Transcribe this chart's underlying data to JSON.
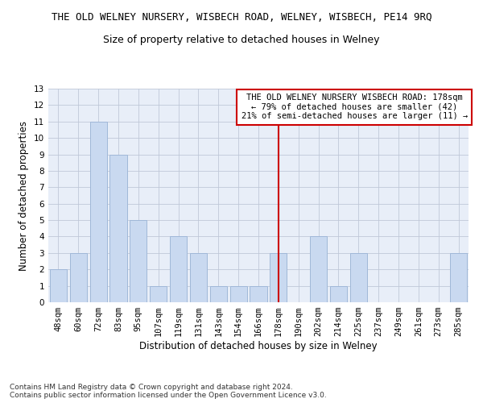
{
  "title": "THE OLD WELNEY NURSERY, WISBECH ROAD, WELNEY, WISBECH, PE14 9RQ",
  "subtitle": "Size of property relative to detached houses in Welney",
  "xlabel": "Distribution of detached houses by size in Welney",
  "ylabel": "Number of detached properties",
  "categories": [
    "48sqm",
    "60sqm",
    "72sqm",
    "83sqm",
    "95sqm",
    "107sqm",
    "119sqm",
    "131sqm",
    "143sqm",
    "154sqm",
    "166sqm",
    "178sqm",
    "190sqm",
    "202sqm",
    "214sqm",
    "225sqm",
    "237sqm",
    "249sqm",
    "261sqm",
    "273sqm",
    "285sqm"
  ],
  "values": [
    2,
    3,
    11,
    9,
    5,
    1,
    4,
    3,
    1,
    1,
    1,
    3,
    0,
    4,
    1,
    3,
    0,
    0,
    0,
    0,
    3
  ],
  "bar_color": "#c9d9f0",
  "bar_edge_color": "#a0b8d8",
  "highlight_index": 11,
  "highlight_line_color": "#cc0000",
  "ylim": [
    0,
    13
  ],
  "yticks": [
    0,
    1,
    2,
    3,
    4,
    5,
    6,
    7,
    8,
    9,
    10,
    11,
    12,
    13
  ],
  "grid_color": "#c0c8d8",
  "bg_color": "#e8eef8",
  "annotation_title": "THE OLD WELNEY NURSERY WISBECH ROAD: 178sqm",
  "annotation_line1": "← 79% of detached houses are smaller (42)",
  "annotation_line2": "21% of semi-detached houses are larger (11) →",
  "annotation_box_color": "#ffffff",
  "annotation_border_color": "#cc0000",
  "footer_line1": "Contains HM Land Registry data © Crown copyright and database right 2024.",
  "footer_line2": "Contains public sector information licensed under the Open Government Licence v3.0.",
  "title_fontsize": 9,
  "subtitle_fontsize": 9,
  "axis_label_fontsize": 8.5,
  "tick_fontsize": 7.5,
  "annotation_fontsize": 7.5,
  "footer_fontsize": 6.5
}
